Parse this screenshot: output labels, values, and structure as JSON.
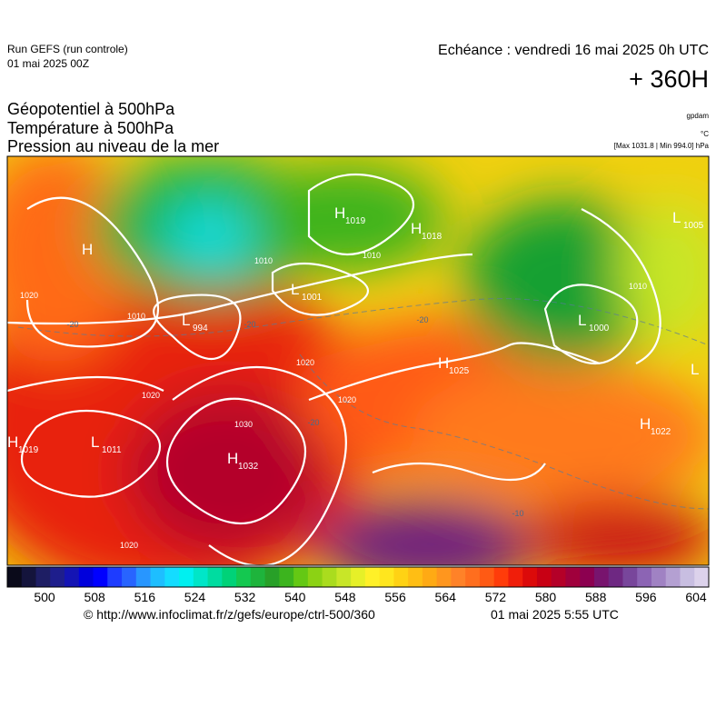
{
  "header": {
    "run": "Run GEFS (run controle)",
    "run_date": "01 mai 2025 00Z",
    "valid": "Echéance : vendredi 16 mai 2025 0h UTC",
    "lead": "+ 360H",
    "fields": [
      "Géopotentiel à 500hPa",
      "Température à 500hPa",
      "Pression au niveau de la mer"
    ],
    "units": [
      "gpdam",
      "°C",
      "[Max 1031.8 | Min 994.0] hPa"
    ]
  },
  "centers": [
    {
      "symbol": "H",
      "value": 1019
    },
    {
      "symbol": "H",
      "value": 1018
    },
    {
      "symbol": "L",
      "value": 1005
    },
    {
      "symbol": "L",
      "value": 1001
    },
    {
      "symbol": "L",
      "value": 994
    },
    {
      "symbol": "L",
      "value": 1000
    },
    {
      "symbol": "H",
      "value": 1025
    },
    {
      "symbol": "H",
      "value": 1022
    },
    {
      "symbol": "H",
      "value": 1019
    },
    {
      "symbol": "L",
      "value": 1011
    },
    {
      "symbol": "H",
      "value": 1032
    },
    {
      "symbol": "H"
    },
    {
      "symbol": "L"
    }
  ],
  "contour_labels": [
    1010,
    1010,
    1020,
    1020,
    1030,
    1020,
    1020,
    1010,
    1020,
    1010,
    -20,
    -20,
    -20,
    -20,
    -10
  ],
  "colorbar": {
    "colors": [
      "#0a0a1a",
      "#14143c",
      "#1e1e64",
      "#1e1e8c",
      "#1414b4",
      "#0000dc",
      "#0000ff",
      "#1e3cff",
      "#2864ff",
      "#2896ff",
      "#1ebeff",
      "#14dcff",
      "#00f0f0",
      "#00e6c8",
      "#00dca0",
      "#00d278",
      "#14c850",
      "#1eb43c",
      "#28a028",
      "#3cb41e",
      "#64c814",
      "#8cd214",
      "#aadc1e",
      "#c8e628",
      "#e6f028",
      "#fff028",
      "#ffe61e",
      "#ffd214",
      "#ffbe14",
      "#ffaa14",
      "#ff961e",
      "#ff8228",
      "#ff6e1e",
      "#ff5a14",
      "#ff3c0a",
      "#f01e0a",
      "#dc0a0a",
      "#c80014",
      "#b40028",
      "#a0003c",
      "#8c0050",
      "#78146e",
      "#6e2882",
      "#78469b",
      "#8c64b4",
      "#a082c3",
      "#b4a0d2",
      "#c8bee1",
      "#dcd2eb"
    ],
    "ticks": [
      500,
      508,
      516,
      524,
      532,
      540,
      548,
      556,
      564,
      572,
      580,
      588,
      596,
      604
    ]
  },
  "footer": {
    "source": "© http://www.infoclimat.fr/z/gefs/europe/ctrl-500/360",
    "generated": "01 mai 2025  5:55 UTC"
  }
}
